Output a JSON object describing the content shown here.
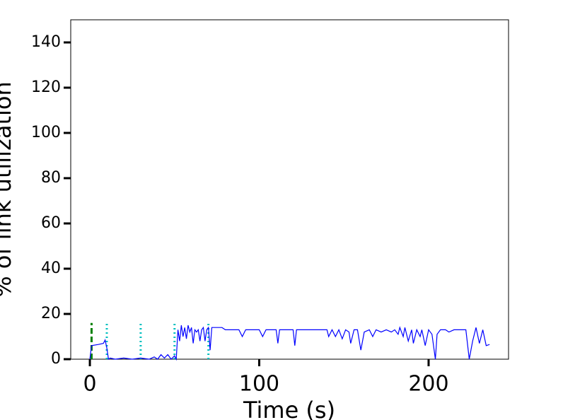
{
  "chart_data": {
    "type": "line",
    "xlabel": "Time (s)",
    "ylabel": "% of link utilization",
    "xlim": [
      -11.3,
      247.2
    ],
    "ylim": [
      0,
      150
    ],
    "xticks": [
      0,
      100,
      200
    ],
    "yticks": [
      0,
      20,
      40,
      60,
      80,
      100,
      120,
      140
    ],
    "x": [
      0,
      1,
      5,
      8,
      9,
      10,
      11,
      12,
      15,
      20,
      25,
      30,
      35,
      38,
      40,
      42,
      44,
      46,
      48,
      50,
      51,
      52,
      53,
      54,
      55,
      56,
      57,
      58,
      59,
      60,
      61,
      62,
      63,
      64,
      65,
      66,
      67,
      68,
      69,
      70,
      71,
      72,
      78,
      80,
      88,
      90,
      92,
      100,
      102,
      104,
      110,
      111,
      112,
      120,
      121,
      122,
      140,
      141,
      143,
      145,
      147,
      149,
      151,
      153,
      154,
      156,
      158,
      160,
      162,
      165,
      167,
      169,
      172,
      175,
      178,
      180,
      182,
      183,
      185,
      186,
      188,
      190,
      191,
      193,
      195,
      196,
      198,
      200,
      202,
      204,
      205,
      207,
      210,
      212,
      215,
      222,
      224,
      226,
      228,
      230,
      232,
      234,
      236
    ],
    "series": [
      {
        "color": "#0000ff",
        "values": [
          0,
          6,
          6.5,
          7,
          8.5,
          5,
          0,
          0.5,
          0,
          0.5,
          0,
          0.5,
          0,
          1,
          0,
          2,
          0.5,
          2,
          0,
          1.5,
          0,
          13,
          8,
          15,
          10,
          14,
          9,
          15,
          12,
          14,
          7,
          13,
          12,
          13,
          8,
          13,
          14,
          8,
          13,
          14,
          4,
          14,
          14,
          13,
          13,
          10,
          13,
          13,
          10,
          13,
          13,
          7,
          13,
          13,
          6,
          13,
          13,
          10,
          13,
          10,
          13,
          9,
          13,
          12,
          7,
          13,
          13,
          4,
          12,
          13,
          10,
          13,
          12,
          13,
          12,
          13,
          11,
          14,
          10,
          14,
          8,
          13,
          7,
          13,
          10,
          13,
          6,
          13,
          11,
          0,
          11,
          13,
          13,
          12,
          13,
          13,
          0,
          8,
          14,
          7,
          13,
          6,
          6.5
        ]
      }
    ],
    "vlines": [
      {
        "x": 1,
        "top": 16,
        "color": "#008000",
        "style": "dashed"
      },
      {
        "x": 10,
        "top": 16,
        "color": "#00bfbf",
        "style": "dotted"
      },
      {
        "x": 30,
        "top": 16,
        "color": "#00bfbf",
        "style": "dotted"
      },
      {
        "x": 50,
        "top": 16,
        "color": "#00bfbf",
        "style": "dotted"
      },
      {
        "x": 70,
        "top": 16,
        "color": "#00bfbf",
        "style": "dotted"
      }
    ]
  }
}
